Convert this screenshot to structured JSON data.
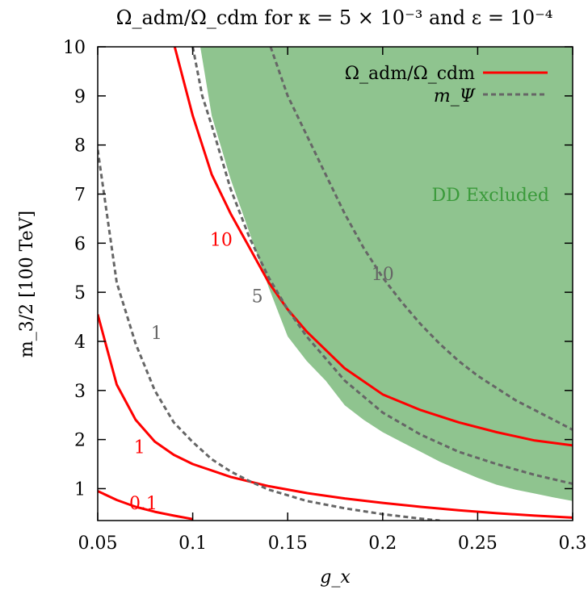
{
  "chart_data": {
    "type": "line",
    "title": "Ω_adm/Ω_cdm for κ = 5 × 10⁻³ and ε = 10⁻⁴",
    "xlabel": "g_x",
    "ylabel": "m_3/2 [100 TeV]",
    "xlim": [
      0.05,
      0.3
    ],
    "ylim": [
      0.35,
      10
    ],
    "x_ticks": [
      "0.05",
      "0.1",
      "0.15",
      "0.2",
      "0.25",
      "0.3"
    ],
    "y_ticks": [
      "1",
      "2",
      "3",
      "4",
      "5",
      "6",
      "7",
      "8",
      "9",
      "10"
    ],
    "grid": false,
    "legend_position": "top-right",
    "legend": [
      {
        "label": "Ω_adm/Ω_cdm",
        "style": "solid",
        "color": "#ff0000"
      },
      {
        "label": "m_Ψ",
        "style": "dashed",
        "color": "#666666"
      }
    ],
    "region": {
      "label": "DD Excluded",
      "color": "#8fc48f",
      "label_color": "#3a9a3a",
      "boundary": [
        [
          0.104,
          10
        ],
        [
          0.11,
          8.6
        ],
        [
          0.12,
          7.3
        ],
        [
          0.13,
          6.2
        ],
        [
          0.14,
          5.1
        ],
        [
          0.145,
          4.6
        ],
        [
          0.15,
          4.1
        ],
        [
          0.16,
          3.6
        ],
        [
          0.17,
          3.2
        ],
        [
          0.18,
          2.7
        ],
        [
          0.19,
          2.4
        ],
        [
          0.2,
          2.15
        ],
        [
          0.21,
          1.95
        ],
        [
          0.22,
          1.75
        ],
        [
          0.23,
          1.55
        ],
        [
          0.24,
          1.38
        ],
        [
          0.25,
          1.22
        ],
        [
          0.26,
          1.08
        ],
        [
          0.27,
          0.98
        ],
        [
          0.28,
          0.9
        ],
        [
          0.29,
          0.82
        ],
        [
          0.3,
          0.75
        ]
      ]
    },
    "series": [
      {
        "name": "0.1",
        "group": "Ω_adm/Ω_cdm",
        "color": "#ff0000",
        "style": "solid",
        "x": [
          0.05,
          0.06,
          0.07,
          0.08,
          0.09,
          0.1
        ],
        "y": [
          0.95,
          0.77,
          0.63,
          0.53,
          0.45,
          0.38
        ]
      },
      {
        "name": "1",
        "group": "Ω_adm/Ω_cdm",
        "color": "#ff0000",
        "style": "solid",
        "x": [
          0.05,
          0.06,
          0.07,
          0.08,
          0.09,
          0.1,
          0.12,
          0.14,
          0.16,
          0.18,
          0.2,
          0.22,
          0.24,
          0.26,
          0.28,
          0.3
        ],
        "y": [
          4.55,
          3.12,
          2.4,
          1.96,
          1.69,
          1.5,
          1.24,
          1.05,
          0.91,
          0.8,
          0.71,
          0.63,
          0.56,
          0.5,
          0.45,
          0.41
        ]
      },
      {
        "name": "10",
        "group": "Ω_adm/Ω_cdm",
        "color": "#ff0000",
        "style": "solid",
        "x": [
          0.0905,
          0.1,
          0.11,
          0.12,
          0.13,
          0.14,
          0.15,
          0.16,
          0.18,
          0.2,
          0.22,
          0.24,
          0.26,
          0.28,
          0.3
        ],
        "y": [
          10,
          8.6,
          7.4,
          6.6,
          5.9,
          5.2,
          4.65,
          4.2,
          3.45,
          2.92,
          2.6,
          2.35,
          2.15,
          1.98,
          1.88
        ]
      },
      {
        "name": "1",
        "group": "m_Ψ",
        "color": "#666666",
        "style": "dashed",
        "x": [
          0.05,
          0.06,
          0.07,
          0.08,
          0.09,
          0.1,
          0.11,
          0.12,
          0.13,
          0.14,
          0.16,
          0.18,
          0.2,
          0.22,
          0.23
        ],
        "y": [
          7.9,
          5.2,
          3.95,
          3.0,
          2.35,
          1.95,
          1.6,
          1.35,
          1.15,
          0.98,
          0.75,
          0.6,
          0.48,
          0.39,
          0.35
        ]
      },
      {
        "name": "5",
        "group": "m_Ψ",
        "color": "#666666",
        "style": "dashed",
        "x": [
          0.1,
          0.105,
          0.11,
          0.12,
          0.13,
          0.14,
          0.15,
          0.16,
          0.18,
          0.2,
          0.22,
          0.24,
          0.26,
          0.28,
          0.3
        ],
        "y": [
          10,
          9.0,
          8.4,
          7.1,
          6.1,
          5.3,
          4.65,
          4.1,
          3.2,
          2.55,
          2.1,
          1.75,
          1.5,
          1.28,
          1.1
        ]
      },
      {
        "name": "10",
        "group": "m_Ψ",
        "color": "#666666",
        "style": "dashed",
        "x": [
          0.141,
          0.15,
          0.16,
          0.17,
          0.18,
          0.19,
          0.2,
          0.21,
          0.22,
          0.23,
          0.24,
          0.25,
          0.26,
          0.27,
          0.28,
          0.29,
          0.3
        ],
        "y": [
          10,
          9.0,
          8.2,
          7.4,
          6.6,
          5.9,
          5.3,
          4.8,
          4.35,
          3.95,
          3.6,
          3.3,
          3.05,
          2.8,
          2.6,
          2.4,
          2.2
        ]
      }
    ],
    "curve_labels": [
      {
        "text": "0.1",
        "x": 0.074,
        "y": 0.58,
        "color": "#ff0000"
      },
      {
        "text": "1",
        "x": 0.072,
        "y": 1.72,
        "color": "#ff0000"
      },
      {
        "text": "10",
        "x": 0.115,
        "y": 5.95,
        "color": "#ff0000"
      },
      {
        "text": "1",
        "x": 0.081,
        "y": 4.05,
        "color": "#666666"
      },
      {
        "text": "5",
        "x": 0.134,
        "y": 4.8,
        "color": "#666666"
      },
      {
        "text": "10",
        "x": 0.2,
        "y": 5.25,
        "color": "#666666"
      }
    ]
  }
}
